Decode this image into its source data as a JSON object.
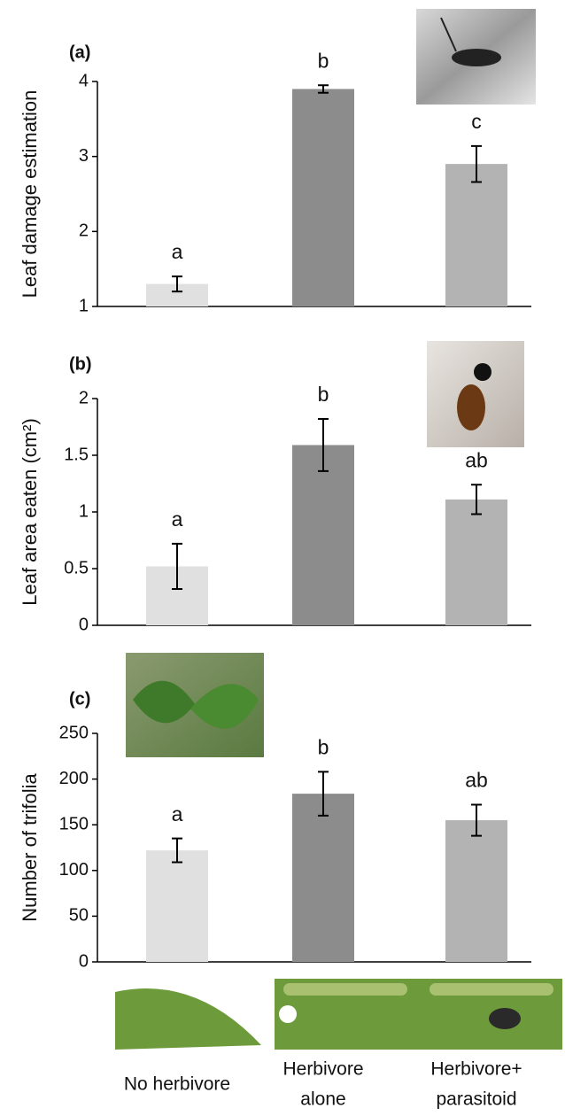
{
  "chart_data": [
    {
      "type": "bar",
      "panel_label": "(a)",
      "ylabel": "Leaf damage estimation",
      "values": [
        1.3,
        3.9,
        2.9
      ],
      "errors": [
        0.1,
        0.05,
        0.24
      ],
      "annotations": [
        "a",
        "b",
        "c"
      ],
      "colors": [
        "#e0e0e0",
        "#8c8c8c",
        "#b3b3b3"
      ],
      "ylim": [
        1,
        4
      ],
      "yticks": [
        1,
        2,
        3,
        4
      ]
    },
    {
      "type": "bar",
      "panel_label": "(b)",
      "ylabel": "Leaf area eaten (cm²)",
      "values": [
        0.52,
        1.59,
        1.11
      ],
      "errors": [
        0.2,
        0.23,
        0.13
      ],
      "annotations": [
        "a",
        "b",
        "ab"
      ],
      "colors": [
        "#e0e0e0",
        "#8c8c8c",
        "#b3b3b3"
      ],
      "ylim": [
        0,
        2
      ],
      "yticks": [
        0,
        0.5,
        1,
        1.5,
        2
      ]
    },
    {
      "type": "bar",
      "panel_label": "(c)",
      "ylabel": "Number of trifolia",
      "categories": [
        [
          "No herbivore"
        ],
        [
          "Herbivore",
          "alone"
        ],
        [
          "Herbivore+",
          "parasitoid"
        ]
      ],
      "values": [
        122,
        184,
        155
      ],
      "errors": [
        13,
        24,
        17
      ],
      "annotations": [
        "a",
        "b",
        "ab"
      ],
      "colors": [
        "#e0e0e0",
        "#8c8c8c",
        "#b3b3b3"
      ],
      "ylim": [
        0,
        250
      ],
      "yticks": [
        0,
        50,
        100,
        150,
        200,
        250
      ]
    }
  ]
}
